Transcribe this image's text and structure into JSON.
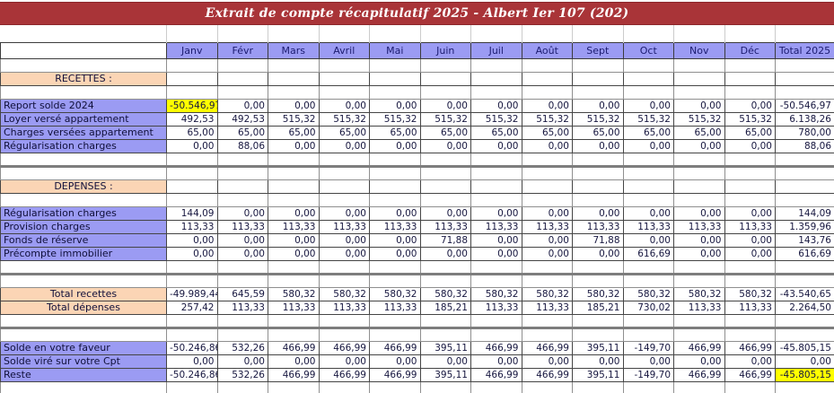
{
  "title": "Extrait de compte récapitulatif 2025 - Albert Ier 107 (202)",
  "colors": {
    "title_bar": "#A93438",
    "header_fill": "#9B9BF3",
    "row_label_fill": "#9B9BF3",
    "section_fill": "#FBD5B5",
    "highlight_fill": "#FFFF00",
    "title_text": "#FFFFFF"
  },
  "table": {
    "columns": [
      "",
      "Janv",
      "Févr",
      "Mars",
      "Avril",
      "Mai",
      "Juin",
      "Juil",
      "Août",
      "Sept",
      "Oct",
      "Nov",
      "Déc",
      "Total  2025"
    ],
    "rows": [
      {
        "type": "empty"
      },
      {
        "type": "section",
        "label": "RECETTES :"
      },
      {
        "type": "empty"
      },
      {
        "type": "data",
        "label": "Report solde 2024",
        "values": [
          "-50.546,97",
          "0,00",
          "0,00",
          "0,00",
          "0,00",
          "0,00",
          "0,00",
          "0,00",
          "0,00",
          "0,00",
          "0,00",
          "0,00",
          "-50.546,97"
        ],
        "highlights": [
          0
        ]
      },
      {
        "type": "data",
        "label": "Loyer versé appartement",
        "values": [
          "492,53",
          "492,53",
          "515,32",
          "515,32",
          "515,32",
          "515,32",
          "515,32",
          "515,32",
          "515,32",
          "515,32",
          "515,32",
          "515,32",
          "6.138,26"
        ],
        "highlights": []
      },
      {
        "type": "data",
        "label": "Charges versées appartement",
        "values": [
          "65,00",
          "65,00",
          "65,00",
          "65,00",
          "65,00",
          "65,00",
          "65,00",
          "65,00",
          "65,00",
          "65,00",
          "65,00",
          "65,00",
          "780,00"
        ],
        "highlights": []
      },
      {
        "type": "data",
        "label": "Régularisation charges",
        "values": [
          "0,00",
          "88,06",
          "0,00",
          "0,00",
          "0,00",
          "0,00",
          "0,00",
          "0,00",
          "0,00",
          "0,00",
          "0,00",
          "0,00",
          "88,06"
        ],
        "highlights": []
      },
      {
        "type": "empty_thick"
      },
      {
        "type": "empty"
      },
      {
        "type": "section",
        "label": "DEPENSES :"
      },
      {
        "type": "empty"
      },
      {
        "type": "data",
        "label": "Régularisation charges",
        "values": [
          "144,09",
          "0,00",
          "0,00",
          "0,00",
          "0,00",
          "0,00",
          "0,00",
          "0,00",
          "0,00",
          "0,00",
          "0,00",
          "0,00",
          "144,09"
        ],
        "highlights": []
      },
      {
        "type": "data",
        "label": "Provision charges",
        "values": [
          "113,33",
          "113,33",
          "113,33",
          "113,33",
          "113,33",
          "113,33",
          "113,33",
          "113,33",
          "113,33",
          "113,33",
          "113,33",
          "113,33",
          "1.359,96"
        ],
        "highlights": []
      },
      {
        "type": "data",
        "label": "Fonds de réserve",
        "values": [
          "0,00",
          "0,00",
          "0,00",
          "0,00",
          "0,00",
          "71,88",
          "0,00",
          "0,00",
          "71,88",
          "0,00",
          "0,00",
          "0,00",
          "143,76"
        ],
        "highlights": []
      },
      {
        "type": "data",
        "label": "Précompte immobilier",
        "values": [
          "0,00",
          "0,00",
          "0,00",
          "0,00",
          "0,00",
          "0,00",
          "0,00",
          "0,00",
          "0,00",
          "616,69",
          "0,00",
          "0,00",
          "616,69"
        ],
        "highlights": []
      },
      {
        "type": "empty_thick"
      },
      {
        "type": "empty"
      },
      {
        "type": "total",
        "label": "Total recettes",
        "values": [
          "-49.989,44",
          "645,59",
          "580,32",
          "580,32",
          "580,32",
          "580,32",
          "580,32",
          "580,32",
          "580,32",
          "580,32",
          "580,32",
          "580,32",
          "-43.540,65"
        ],
        "highlights": []
      },
      {
        "type": "total",
        "label": "Total dépenses",
        "values": [
          "257,42",
          "113,33",
          "113,33",
          "113,33",
          "113,33",
          "185,21",
          "113,33",
          "113,33",
          "185,21",
          "730,02",
          "113,33",
          "113,33",
          "2.264,50"
        ],
        "highlights": []
      },
      {
        "type": "empty_thick"
      },
      {
        "type": "empty"
      },
      {
        "type": "data",
        "label": "Solde en votre faveur",
        "values": [
          "-50.246,86",
          "532,26",
          "466,99",
          "466,99",
          "466,99",
          "395,11",
          "466,99",
          "466,99",
          "395,11",
          "-149,70",
          "466,99",
          "466,99",
          "-45.805,15"
        ],
        "highlights": []
      },
      {
        "type": "data",
        "label": "Solde viré sur votre Cpt",
        "values": [
          "0,00",
          "0,00",
          "0,00",
          "0,00",
          "0,00",
          "0,00",
          "0,00",
          "0,00",
          "0,00",
          "0,00",
          "0,00",
          "0,00",
          "0,00"
        ],
        "highlights": []
      },
      {
        "type": "data",
        "label": "Reste",
        "values": [
          "-50.246,86",
          "532,26",
          "466,99",
          "466,99",
          "466,99",
          "395,11",
          "466,99",
          "466,99",
          "395,11",
          "-149,70",
          "466,99",
          "466,99",
          "-45.805,15"
        ],
        "highlights": [
          12
        ]
      },
      {
        "type": "empty"
      }
    ]
  }
}
